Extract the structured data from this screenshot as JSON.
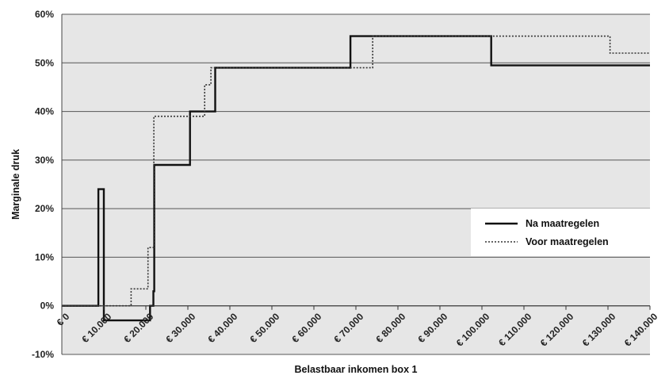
{
  "chart_data": {
    "type": "line",
    "xlabel": "Belastbaar inkomen box 1",
    "ylabel": "Marginale druk",
    "xlim": [
      0,
      140000
    ],
    "ylim": [
      -10,
      60
    ],
    "x_tick_values": [
      0,
      10000,
      20000,
      30000,
      40000,
      50000,
      60000,
      70000,
      80000,
      90000,
      100000,
      110000,
      120000,
      130000,
      140000
    ],
    "x_tick_labels": [
      "€ 0",
      "€ 10.000",
      "€ 20.000",
      "€ 30.000",
      "€ 40.000",
      "€ 50.000",
      "€ 60.000",
      "€ 70.000",
      "€ 80.000",
      "€ 90.000",
      "€ 100.000",
      "€ 110.000",
      "€ 120.000",
      "€ 130.000",
      "€ 140.000"
    ],
    "y_tick_values": [
      -10,
      0,
      10,
      20,
      30,
      40,
      50,
      60
    ],
    "y_tick_labels": [
      "-10%",
      "0%",
      "10%",
      "20%",
      "30%",
      "40%",
      "50%",
      "60%"
    ],
    "grid": "horizontal",
    "background": "#e6e6e6",
    "legend_position": "right",
    "series": [
      {
        "name": "Na maatregelen",
        "style": "solid",
        "color": "#111111",
        "x": [
          0,
          8700,
          8700,
          10000,
          10000,
          20000,
          20000,
          21000,
          21000,
          21800,
          21800,
          22000,
          22000,
          30500,
          30500,
          36500,
          36500,
          68700,
          68700,
          102200,
          102200,
          140000
        ],
        "y": [
          0,
          0,
          24,
          24,
          -3,
          -3,
          -3,
          -3,
          0,
          0,
          3,
          3,
          29,
          29,
          40,
          40,
          49,
          49,
          55.5,
          55.5,
          49.5,
          49.5
        ]
      },
      {
        "name": "Voor maatregelen",
        "style": "dotted",
        "color": "#333333",
        "x": [
          0,
          16500,
          16500,
          20500,
          20500,
          21000,
          21000,
          21900,
          21900,
          29500,
          29500,
          34000,
          34000,
          35500,
          35500,
          37000,
          37000,
          74000,
          74000,
          130500,
          130500,
          140000
        ],
        "y": [
          0,
          0,
          3.5,
          3.5,
          12,
          12,
          12,
          12,
          39,
          39,
          39,
          39,
          45.5,
          45.5,
          49,
          49,
          49,
          49,
          55.5,
          55.5,
          52,
          52
        ]
      }
    ]
  }
}
